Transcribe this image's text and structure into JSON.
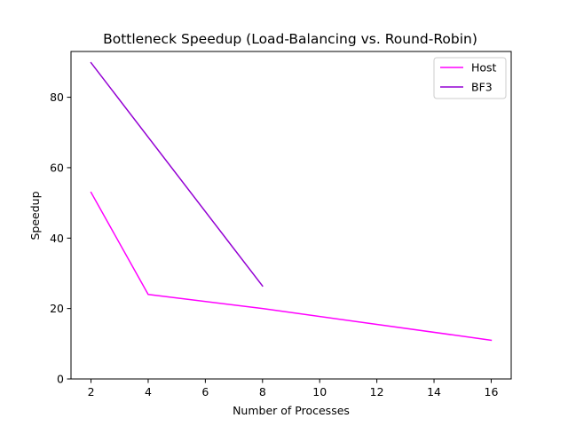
{
  "chart_data": {
    "type": "line",
    "title": "Bottleneck Speedup (Load-Balancing vs. Round-Robin)",
    "xlabel": "Number of Processes",
    "ylabel": "Speedup",
    "xlim": [
      1.3,
      16.7
    ],
    "ylim": [
      0,
      93
    ],
    "xticks": [
      2,
      4,
      6,
      8,
      10,
      12,
      14,
      16
    ],
    "yticks": [
      0,
      20,
      40,
      60,
      80
    ],
    "grid": false,
    "legend_position": "top-right",
    "series": [
      {
        "name": "Host",
        "color": "#ff00ff",
        "x": [
          2,
          4,
          8,
          16
        ],
        "y": [
          53.0,
          24.0,
          20.0,
          11.0
        ]
      },
      {
        "name": "BF3",
        "color": "#9400d3",
        "x": [
          2,
          8
        ],
        "y": [
          89.8,
          26.4
        ]
      }
    ]
  }
}
